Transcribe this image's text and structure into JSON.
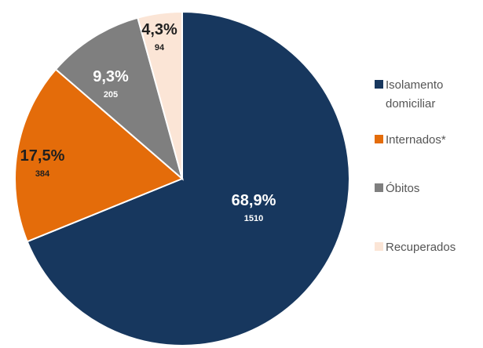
{
  "chart_data": {
    "type": "pie",
    "title": "",
    "legend_position": "right",
    "slices": [
      {
        "name": "Isolamento domiciliar",
        "legend_lines": [
          "Isolamento",
          "domiciliar"
        ],
        "value": 1510,
        "percent_label": "68,9%",
        "count_label": "1510",
        "color": "#17375e",
        "label_color": "#ffffff"
      },
      {
        "name": "Internados*",
        "legend_lines": [
          "Internados*"
        ],
        "value": 384,
        "percent_label": "17,5%",
        "count_label": "384",
        "color": "#e46c0a",
        "label_color": "#1f1f1f"
      },
      {
        "name": "Óbitos",
        "legend_lines": [
          "Óbitos"
        ],
        "value": 205,
        "percent_label": "9,3%",
        "count_label": "205",
        "color": "#7f7f7f",
        "label_color": "#ffffff"
      },
      {
        "name": "Recuperados",
        "legend_lines": [
          "Recuperados"
        ],
        "value": 94,
        "percent_label": "4,3%",
        "count_label": "94",
        "color": "#fbe5d6",
        "label_color": "#1f1f1f"
      }
    ]
  }
}
